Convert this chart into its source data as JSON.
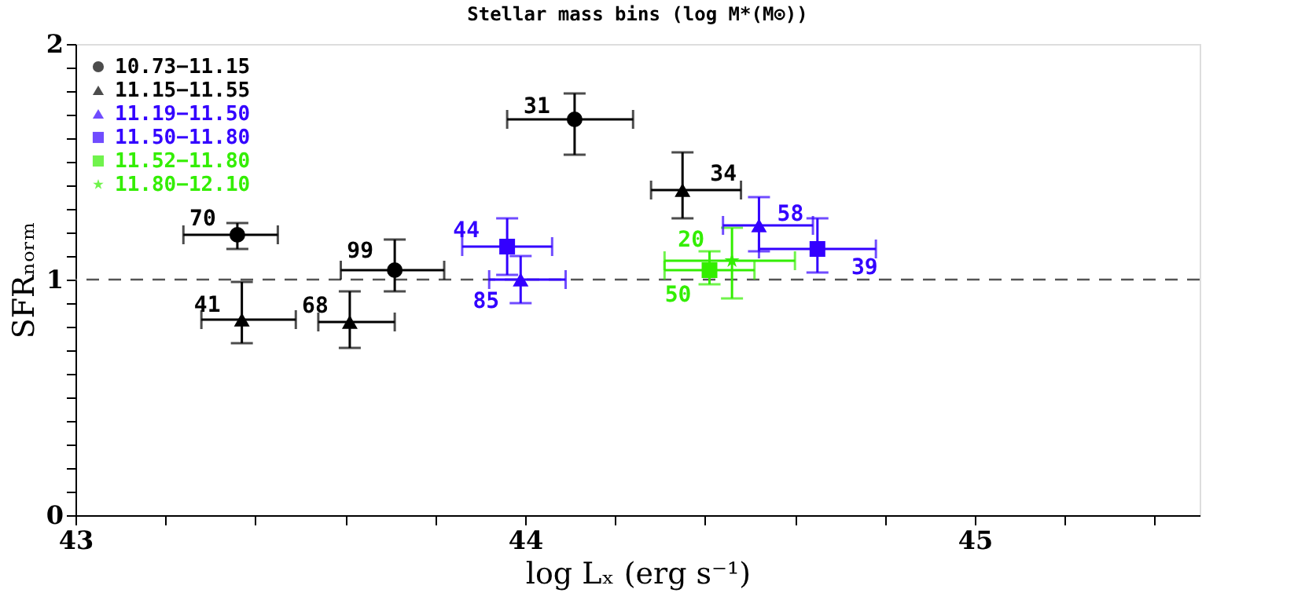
{
  "chart_data": {
    "type": "scatter",
    "title": "Stellar mass bins (log M*(M⊙))",
    "xlabel": "log Lₓ   (erg s⁻¹)",
    "ylabel": "SFRₙₒᵣₘ",
    "xlim": [
      43,
      45.5
    ],
    "ylim": [
      0,
      2
    ],
    "xticks": [
      43,
      {
        "value": 43.2,
        "label": null
      },
      {
        "value": 43.4,
        "label": null
      },
      {
        "value": 43.6,
        "label": null
      },
      {
        "value": 43.8,
        "label": null
      },
      44,
      {
        "value": 44.2,
        "label": null
      },
      {
        "value": 44.4,
        "label": null
      },
      {
        "value": 44.6,
        "label": null
      },
      {
        "value": 44.8,
        "label": null
      },
      45,
      {
        "value": 45.2,
        "label": null
      },
      {
        "value": 45.4,
        "label": null
      }
    ],
    "yticks": [
      0,
      {
        "value": 0.1,
        "label": null
      },
      {
        "value": 0.2,
        "label": null
      },
      {
        "value": 0.3,
        "label": null
      },
      {
        "value": 0.4,
        "label": null
      },
      {
        "value": 0.5,
        "label": null
      },
      {
        "value": 0.6,
        "label": null
      },
      {
        "value": 0.7,
        "label": null
      },
      {
        "value": 0.8,
        "label": null
      },
      {
        "value": 0.9,
        "label": null
      },
      1,
      {
        "value": 1.1,
        "label": null
      },
      {
        "value": 1.2,
        "label": null
      },
      {
        "value": 1.3,
        "label": null
      },
      {
        "value": 1.4,
        "label": null
      },
      {
        "value": 1.5,
        "label": null
      },
      {
        "value": 1.6,
        "label": null
      },
      {
        "value": 1.7,
        "label": null
      },
      {
        "value": 1.8,
        "label": null
      },
      {
        "value": 1.9,
        "label": null
      },
      2
    ],
    "grid": false,
    "legend": "top left",
    "series": [
      {
        "name": "10.73−11.15",
        "color": "#000000",
        "marker": "circle",
        "x": [
          43.36,
          43.71,
          44.11
        ],
        "values": [
          1.19,
          1.04,
          1.68
        ],
        "errors": [
          [
            1.13,
            1.24
          ],
          [
            0.95,
            1.17
          ],
          [
            1.53,
            1.79
          ]
        ],
        "xerrors": [
          [
            43.24,
            43.45
          ],
          [
            43.59,
            43.82
          ],
          [
            43.96,
            44.24
          ]
        ]
      },
      {
        "name": "11.15−11.55",
        "color": "#000000",
        "marker": "triangle",
        "x": [
          43.37,
          43.61,
          44.35
        ],
        "values": [
          0.83,
          0.82,
          1.38
        ],
        "errors": [
          [
            0.73,
            0.99
          ],
          [
            0.71,
            0.95
          ],
          [
            1.26,
            1.54
          ]
        ],
        "xerrors": [
          [
            43.28,
            43.49
          ],
          [
            43.54,
            43.71
          ],
          [
            44.28,
            44.48
          ]
        ]
      },
      {
        "name": "11.19−11.50",
        "color": "#3300ff",
        "marker": "triangle",
        "x": [
          43.99,
          44.52
        ],
        "values": [
          1.0,
          1.23
        ],
        "errors": [
          [
            0.9,
            1.1
          ],
          [
            1.12,
            1.35
          ]
        ],
        "xerrors": [
          [
            43.92,
            44.09
          ],
          [
            44.44,
            44.64
          ]
        ]
      },
      {
        "name": "11.50−11.80",
        "color": "#3300ff",
        "marker": "square",
        "x": [
          43.96,
          44.65
        ],
        "values": [
          1.14,
          1.13
        ],
        "errors": [
          [
            1.02,
            1.26
          ],
          [
            1.03,
            1.26
          ]
        ],
        "xerrors": [
          [
            43.86,
            44.06
          ],
          [
            44.52,
            44.78
          ]
        ]
      },
      {
        "name": "11.52−11.80",
        "color": "#33ee00",
        "marker": "square",
        "x": [
          44.41
        ],
        "values": [
          1.04
        ],
        "errors": [
          [
            0.98,
            1.12
          ]
        ],
        "xerrors": [
          [
            44.31,
            44.51
          ]
        ]
      },
      {
        "name": "11.80−12.10",
        "color": "#33ee00",
        "marker": "star",
        "x": [
          44.46
        ],
        "values": [
          1.08
        ],
        "errors": [
          [
            0.92,
            1.22
          ]
        ],
        "xerrors": [
          [
            44.31,
            44.6
          ]
        ]
      }
    ],
    "ref_lines": [
      {
        "axis": "y",
        "value": 1,
        "line_style": "dashed",
        "color": "#555555"
      }
    ],
    "annotations": [
      {
        "text": "70",
        "x": 43.36,
        "y": 1.19
      },
      {
        "text": "99",
        "x": 43.71,
        "y": 1.04
      },
      {
        "text": "31",
        "x": 44.11,
        "y": 1.68
      },
      {
        "text": "41",
        "x": 43.37,
        "y": 0.83
      },
      {
        "text": "68",
        "x": 43.61,
        "y": 0.82
      },
      {
        "text": "34",
        "x": 44.35,
        "y": 1.38
      },
      {
        "text": "44",
        "x": 43.96,
        "y": 1.14
      },
      {
        "text": "85",
        "x": 43.99,
        "y": 1.0
      },
      {
        "text": "58",
        "x": 44.52,
        "y": 1.23
      },
      {
        "text": "39",
        "x": 44.65,
        "y": 1.13
      },
      {
        "text": "20",
        "x": 44.46,
        "y": 1.08
      },
      {
        "text": "50",
        "x": 44.41,
        "y": 1.04
      }
    ]
  }
}
